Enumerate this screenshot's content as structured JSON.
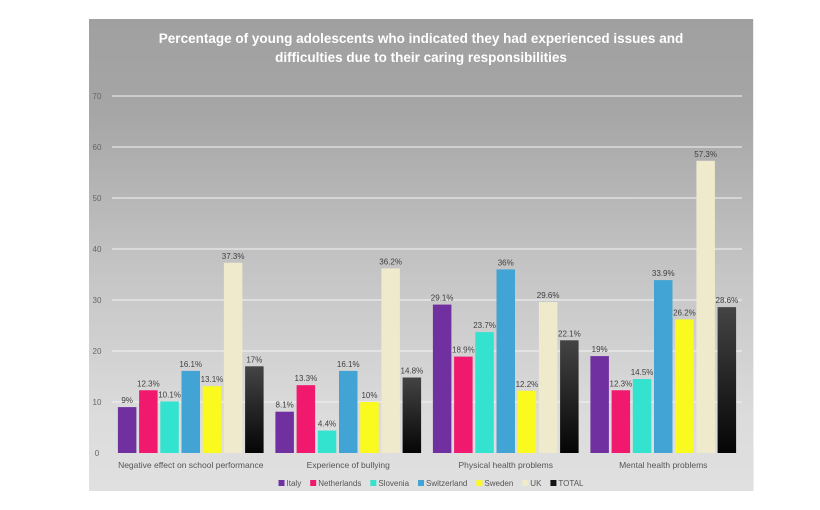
{
  "chart_data": {
    "type": "bar",
    "title": "Percentage of young adolescents who indicated they had experienced issues and difficulties due to their caring responsibilities",
    "title_lines": [
      "Percentage of young adolescents who indicated they had experienced issues and",
      "difficulties due to their caring responsibilities"
    ],
    "xlabel": "",
    "ylabel": "",
    "ylim": [
      0,
      70
    ],
    "yticks": [
      0,
      10,
      20,
      30,
      40,
      50,
      60,
      70
    ],
    "grid": true,
    "legend_position": "bottom",
    "categories": [
      "Negative effect on school performance",
      "Experience of bullying",
      "Physical health problems",
      "Mental health problems"
    ],
    "series": [
      {
        "name": "Italy",
        "color": "#7030a0",
        "values": [
          9,
          8.1,
          29.1,
          19
        ],
        "labels": [
          "9%",
          "8.1%",
          "29.1%",
          "19%"
        ]
      },
      {
        "name": "Netherlands",
        "color": "#f0196e",
        "values": [
          12.3,
          13.3,
          18.9,
          12.3
        ],
        "labels": [
          "12.3%",
          "13.3%",
          "18.9%",
          "12.3%"
        ]
      },
      {
        "name": "Slovenia",
        "color": "#33e3cf",
        "values": [
          10.1,
          4.4,
          23.7,
          14.5
        ],
        "labels": [
          "10.1%",
          "4.4%",
          "23.7%",
          "14.5%"
        ]
      },
      {
        "name": "Switzerland",
        "color": "#42a4d4",
        "values": [
          16.1,
          16.1,
          36,
          33.9
        ],
        "labels": [
          "16.1%",
          "16.1%",
          "36%",
          "33.9%"
        ]
      },
      {
        "name": "Sweden",
        "color": "#fafa1e",
        "values": [
          13.1,
          10,
          12.2,
          26.2
        ],
        "labels": [
          "13.1%",
          "10%",
          "12.2%",
          "26.2%"
        ]
      },
      {
        "name": "UK",
        "color": "#eeeacb",
        "values": [
          37.3,
          36.2,
          29.6,
          57.3
        ],
        "labels": [
          "37.3%",
          "36.2%",
          "29.6%",
          "57.3%"
        ]
      },
      {
        "name": "TOTAL",
        "color": "#151515",
        "values": [
          17,
          14.8,
          22.1,
          28.6
        ],
        "labels": [
          "17%",
          "14.8%",
          "22.1%",
          "28.6%"
        ]
      }
    ]
  }
}
